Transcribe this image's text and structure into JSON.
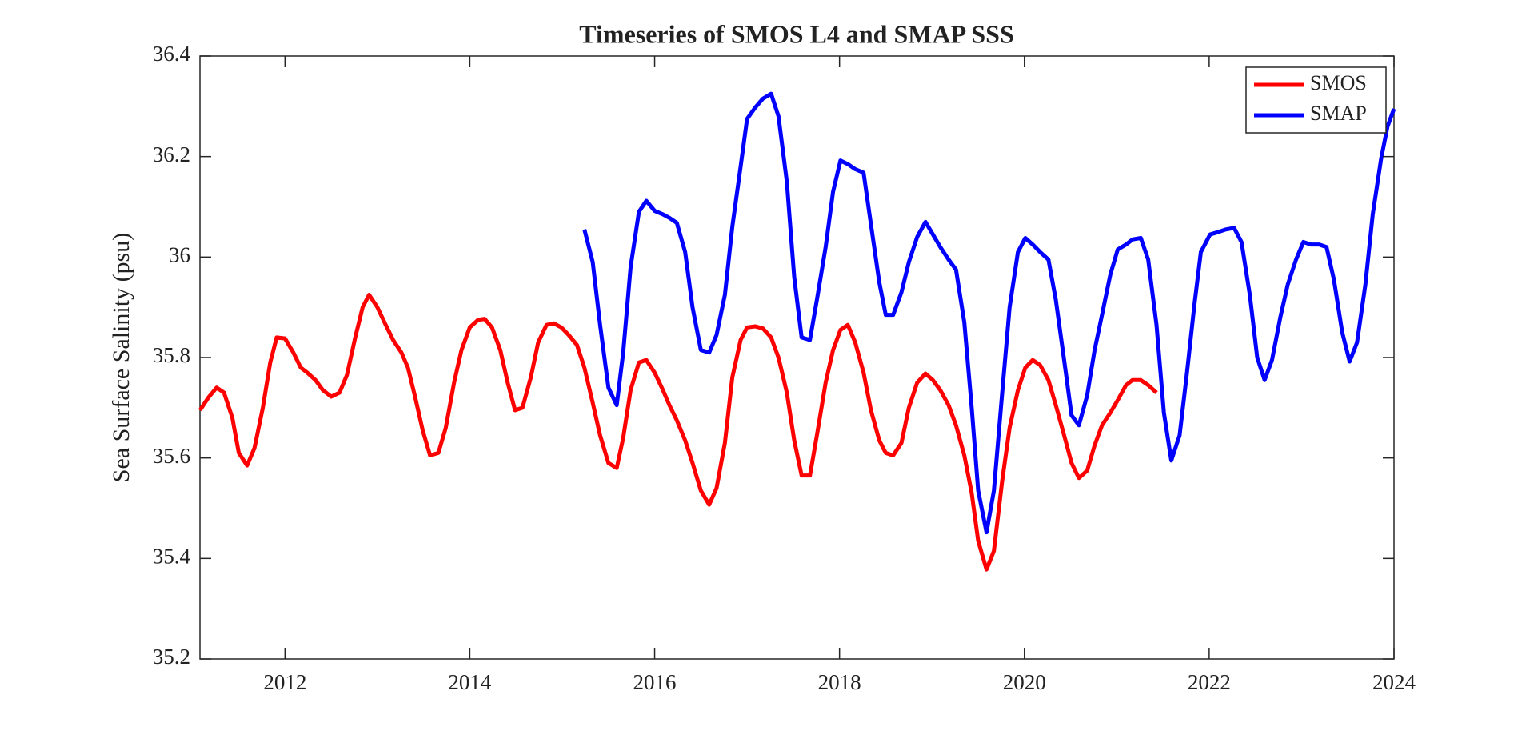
{
  "chart_data": {
    "type": "line",
    "title": "Timeseries of SMOS L4 and SMAP SSS",
    "ylabel": "Sea Surface Salinity (psu)",
    "xlim": [
      2011.08,
      2024
    ],
    "xticks": [
      2012,
      2014,
      2016,
      2018,
      2020,
      2022,
      2024
    ],
    "ylim": [
      35.2,
      36.4
    ],
    "yticks": [
      35.2,
      35.4,
      35.6,
      35.8,
      36,
      36.2,
      36.4
    ],
    "grid": false,
    "legend": "upper right",
    "series": [
      {
        "name": "SMOS",
        "color": "#ff0000",
        "x": [
          2011.08,
          2011.17,
          2011.26,
          2011.34,
          2011.43,
          2011.5,
          2011.59,
          2011.67,
          2011.76,
          2011.84,
          2011.91,
          2012.0,
          2012.09,
          2012.17,
          2012.24,
          2012.33,
          2012.41,
          2012.5,
          2012.59,
          2012.67,
          2012.76,
          2012.84,
          2012.91,
          2013.0,
          2013.09,
          2013.17,
          2013.26,
          2013.33,
          2013.41,
          2013.49,
          2013.57,
          2013.66,
          2013.74,
          2013.83,
          2013.91,
          2014.0,
          2014.09,
          2014.16,
          2014.24,
          2014.33,
          2014.41,
          2014.49,
          2014.57,
          2014.66,
          2014.74,
          2014.83,
          2014.91,
          2014.99,
          2015.07,
          2015.16,
          2015.24,
          2015.33,
          2015.41,
          2015.5,
          2015.59,
          2015.66,
          2015.74,
          2015.83,
          2015.91,
          2016.0,
          2016.09,
          2016.16,
          2016.24,
          2016.33,
          2016.41,
          2016.5,
          2016.59,
          2016.67,
          2016.76,
          2016.84,
          2016.93,
          2017.0,
          2017.09,
          2017.17,
          2017.26,
          2017.34,
          2017.43,
          2017.51,
          2017.59,
          2017.68,
          2017.76,
          2017.85,
          2017.93,
          2018.01,
          2018.09,
          2018.17,
          2018.26,
          2018.34,
          2018.43,
          2018.5,
          2018.58,
          2018.67,
          2018.75,
          2018.84,
          2018.93,
          2019.01,
          2019.09,
          2019.18,
          2019.26,
          2019.35,
          2019.43,
          2019.5,
          2019.59,
          2019.67,
          2019.76,
          2019.84,
          2019.93,
          2020.01,
          2020.09,
          2020.17,
          2020.26,
          2020.34,
          2020.43,
          2020.51,
          2020.59,
          2020.68,
          2020.76,
          2020.84,
          2020.93,
          2021.01,
          2021.1,
          2021.17,
          2021.26,
          2021.34,
          2021.43
        ],
        "values": [
          35.695,
          35.72,
          35.74,
          35.73,
          35.68,
          35.61,
          35.585,
          35.62,
          35.7,
          35.79,
          35.84,
          35.838,
          35.81,
          35.78,
          35.77,
          35.755,
          35.735,
          35.722,
          35.73,
          35.765,
          35.84,
          35.9,
          35.925,
          35.9,
          35.865,
          35.835,
          35.81,
          35.78,
          35.72,
          35.655,
          35.605,
          35.61,
          35.66,
          35.75,
          35.815,
          35.86,
          35.875,
          35.877,
          35.86,
          35.815,
          35.75,
          35.695,
          35.7,
          35.76,
          35.83,
          35.865,
          35.868,
          35.86,
          35.845,
          35.825,
          35.78,
          35.71,
          35.645,
          35.59,
          35.58,
          35.64,
          35.735,
          35.79,
          35.795,
          35.77,
          35.735,
          35.705,
          35.675,
          35.635,
          35.59,
          35.535,
          35.507,
          35.54,
          35.63,
          35.76,
          35.835,
          35.86,
          35.862,
          35.858,
          35.84,
          35.8,
          35.73,
          35.635,
          35.565,
          35.565,
          35.65,
          35.75,
          35.815,
          35.855,
          35.865,
          35.83,
          35.77,
          35.695,
          35.635,
          35.61,
          35.605,
          35.63,
          35.7,
          35.75,
          35.768,
          35.755,
          35.735,
          35.705,
          35.665,
          35.605,
          35.53,
          35.435,
          35.378,
          35.415,
          35.555,
          35.66,
          35.735,
          35.78,
          35.795,
          35.785,
          35.755,
          35.705,
          35.645,
          35.59,
          35.56,
          35.575,
          35.625,
          35.665,
          35.69,
          35.715,
          35.745,
          35.755,
          35.755,
          35.745,
          35.73
        ]
      },
      {
        "name": "SMAP",
        "color": "#0000ff",
        "x": [
          2015.24,
          2015.33,
          2015.41,
          2015.5,
          2015.59,
          2015.66,
          2015.74,
          2015.83,
          2015.91,
          2016.0,
          2016.09,
          2016.16,
          2016.24,
          2016.33,
          2016.41,
          2016.5,
          2016.59,
          2016.67,
          2016.76,
          2016.84,
          2016.93,
          2017.0,
          2017.09,
          2017.17,
          2017.26,
          2017.34,
          2017.43,
          2017.51,
          2017.59,
          2017.68,
          2017.76,
          2017.85,
          2017.93,
          2018.01,
          2018.09,
          2018.17,
          2018.26,
          2018.34,
          2018.43,
          2018.5,
          2018.58,
          2018.67,
          2018.75,
          2018.84,
          2018.93,
          2019.01,
          2019.09,
          2019.18,
          2019.26,
          2019.35,
          2019.43,
          2019.5,
          2019.59,
          2019.67,
          2019.76,
          2019.84,
          2019.93,
          2020.01,
          2020.09,
          2020.17,
          2020.26,
          2020.34,
          2020.43,
          2020.51,
          2020.59,
          2020.68,
          2020.76,
          2020.84,
          2020.93,
          2021.01,
          2021.1,
          2021.17,
          2021.26,
          2021.34,
          2021.43,
          2021.51,
          2021.59,
          2021.68,
          2021.76,
          2021.84,
          2021.91,
          2022.01,
          2022.1,
          2022.18,
          2022.27,
          2022.35,
          2022.44,
          2022.52,
          2022.6,
          2022.68,
          2022.77,
          2022.85,
          2022.94,
          2023.02,
          2023.1,
          2023.19,
          2023.27,
          2023.35,
          2023.44,
          2023.52,
          2023.6,
          2023.69,
          2023.77,
          2023.86,
          2023.93,
          2024.0
        ],
        "values": [
          36.055,
          35.99,
          35.865,
          35.74,
          35.705,
          35.81,
          35.98,
          36.09,
          36.112,
          36.092,
          36.085,
          36.078,
          36.068,
          36.01,
          35.9,
          35.815,
          35.81,
          35.845,
          35.925,
          36.06,
          36.18,
          36.275,
          36.298,
          36.315,
          36.325,
          36.28,
          36.15,
          35.96,
          35.84,
          35.835,
          35.92,
          36.02,
          36.13,
          36.192,
          36.185,
          36.175,
          36.168,
          36.065,
          35.95,
          35.885,
          35.885,
          35.93,
          35.99,
          36.04,
          36.07,
          36.045,
          36.02,
          35.995,
          35.975,
          35.87,
          35.7,
          35.535,
          35.452,
          35.535,
          35.73,
          35.9,
          36.01,
          36.038,
          36.025,
          36.01,
          35.995,
          35.915,
          35.795,
          35.685,
          35.665,
          35.725,
          35.815,
          35.885,
          35.965,
          36.015,
          36.025,
          36.035,
          36.038,
          35.995,
          35.865,
          35.69,
          35.595,
          35.645,
          35.77,
          35.905,
          36.01,
          36.045,
          36.05,
          36.055,
          36.058,
          36.03,
          35.925,
          35.8,
          35.755,
          35.795,
          35.88,
          35.945,
          35.995,
          36.03,
          36.025,
          36.025,
          36.02,
          35.955,
          35.85,
          35.792,
          35.83,
          35.945,
          36.085,
          36.195,
          36.26,
          36.295
        ]
      }
    ]
  }
}
